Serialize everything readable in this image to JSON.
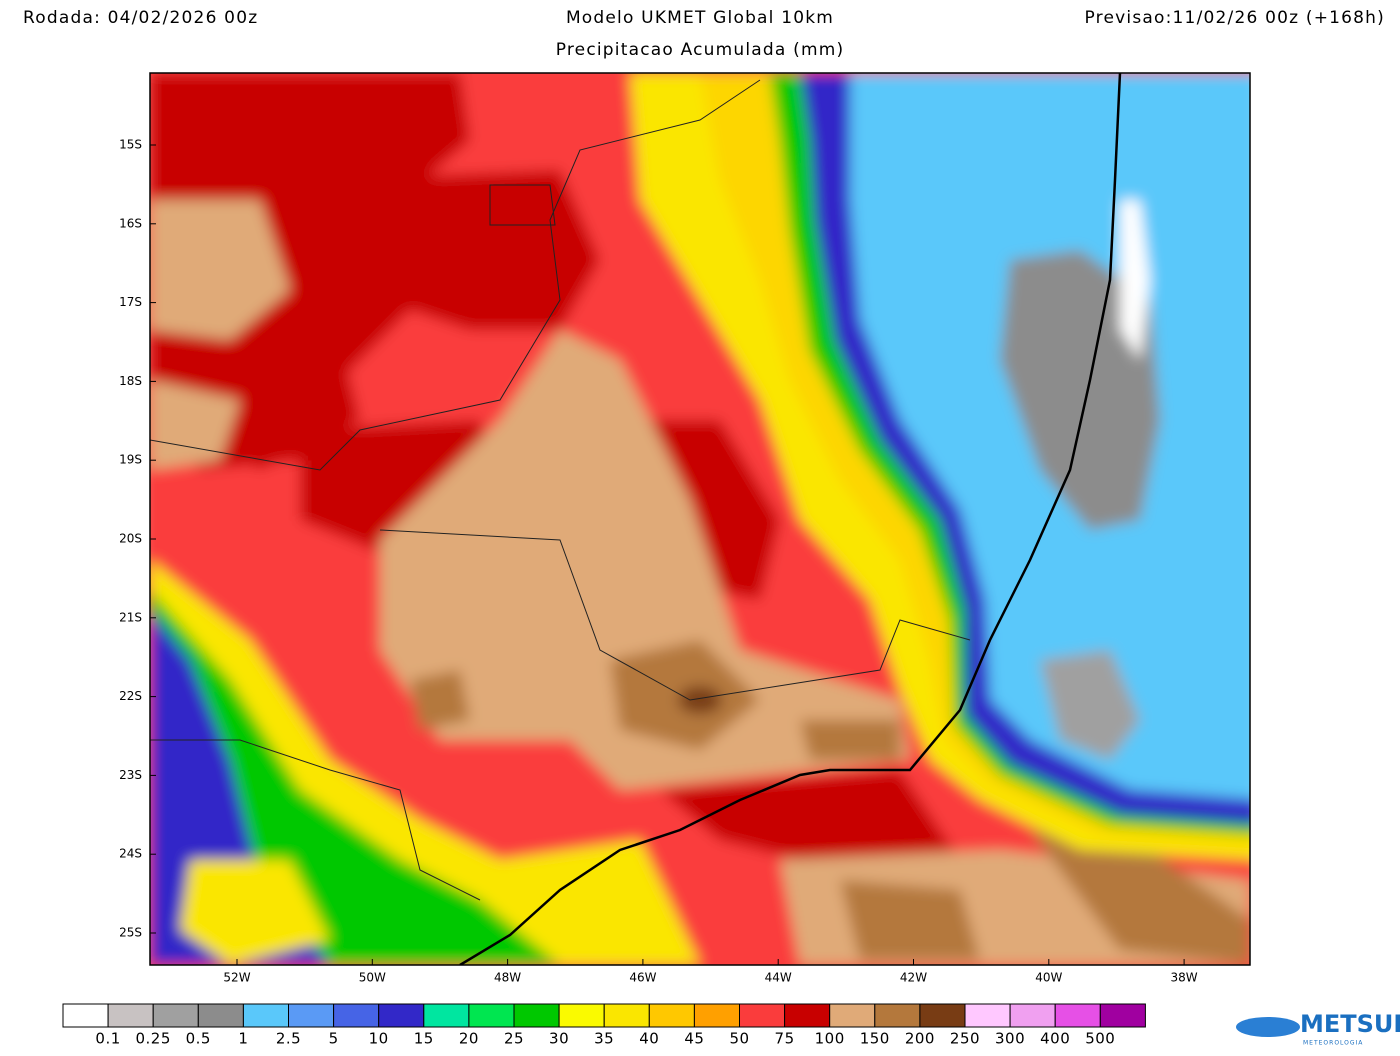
{
  "header": {
    "left": "Rodada: 04/02/2026 00z",
    "title": "Modelo UKMET Global 10km",
    "subtitle": "Precipitacao Acumulada (mm)",
    "right": "Previsao:11/02/26 00z (+168h)"
  },
  "map": {
    "lat_labels": [
      "15S",
      "16S",
      "17S",
      "18S",
      "19S",
      "20S",
      "21S",
      "22S",
      "23S",
      "24S",
      "25S"
    ],
    "lon_labels": [
      "52W",
      "50W",
      "48W",
      "46W",
      "44W",
      "42W",
      "40W",
      "38W"
    ]
  },
  "colorbar": {
    "colors": [
      "#ffffff",
      "#c8c2c2",
      "#a0a0a0",
      "#8c8c8c",
      "#5ac8fa",
      "#5a9af5",
      "#4664e6",
      "#3228c8",
      "#00e6a0",
      "#00e650",
      "#00c800",
      "#fafa00",
      "#fae600",
      "#ffc800",
      "#ffa000",
      "#fa3c3c",
      "#c80000",
      "#e0aa78",
      "#b4783c",
      "#783c14",
      "#ffc8ff",
      "#f0a0f0",
      "#e650e6",
      "#a000a0"
    ],
    "labels": [
      "0.1",
      "0.25",
      "0.5",
      "1",
      "2.5",
      "5",
      "10",
      "15",
      "20",
      "25",
      "30",
      "35",
      "40",
      "45",
      "50",
      "75",
      "100",
      "150",
      "200",
      "250",
      "300",
      "400",
      "500"
    ]
  },
  "logo": {
    "name": "METSUL",
    "tagline": "METEOROLOGIA"
  }
}
